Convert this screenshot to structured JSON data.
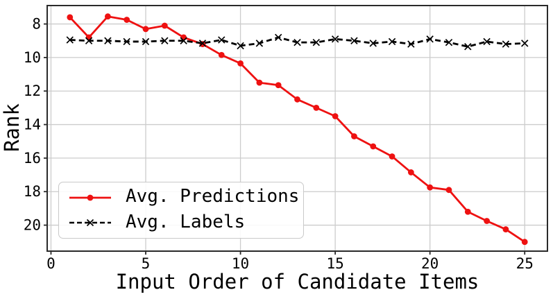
{
  "figure": {
    "background": "#ffffff",
    "grid_color": "#cccccc",
    "spine_color": "#2a2a2a",
    "text_color": "#000000"
  },
  "chart_data": {
    "type": "line",
    "title": "",
    "xlabel": "Input Order of Candidate Items",
    "ylabel": "Rank",
    "x": [
      1,
      2,
      3,
      4,
      5,
      6,
      7,
      8,
      9,
      10,
      11,
      12,
      13,
      14,
      15,
      16,
      17,
      18,
      19,
      20,
      21,
      22,
      23,
      24,
      25
    ],
    "series": [
      {
        "name": "Avg. Predictions",
        "color": "#ee1111",
        "line_style": "solid",
        "marker": "circle",
        "values": [
          7.6,
          8.8,
          7.55,
          7.75,
          8.3,
          8.1,
          8.8,
          9.2,
          9.85,
          10.35,
          11.5,
          11.65,
          12.5,
          13.0,
          13.5,
          14.7,
          15.3,
          15.9,
          16.85,
          17.75,
          17.9,
          19.2,
          19.75,
          20.25,
          21.0
        ]
      },
      {
        "name": "Avg. Labels",
        "color": "#000000",
        "line_style": "dashed",
        "marker": "x",
        "values": [
          8.95,
          9.0,
          9.0,
          9.05,
          9.05,
          9.0,
          9.0,
          9.15,
          8.95,
          9.3,
          9.15,
          8.8,
          9.1,
          9.1,
          8.9,
          9.0,
          9.15,
          9.05,
          9.2,
          8.9,
          9.1,
          9.35,
          9.05,
          9.2,
          9.15
        ]
      }
    ],
    "xticks": [
      0,
      5,
      10,
      15,
      20,
      25
    ],
    "yticks": [
      8,
      10,
      12,
      14,
      16,
      18,
      20
    ],
    "xlim": [
      -0.2,
      26.2
    ],
    "ylim": [
      6.9,
      21.55
    ],
    "y_inverted": true,
    "grid": true,
    "legend_position": "lower left"
  }
}
